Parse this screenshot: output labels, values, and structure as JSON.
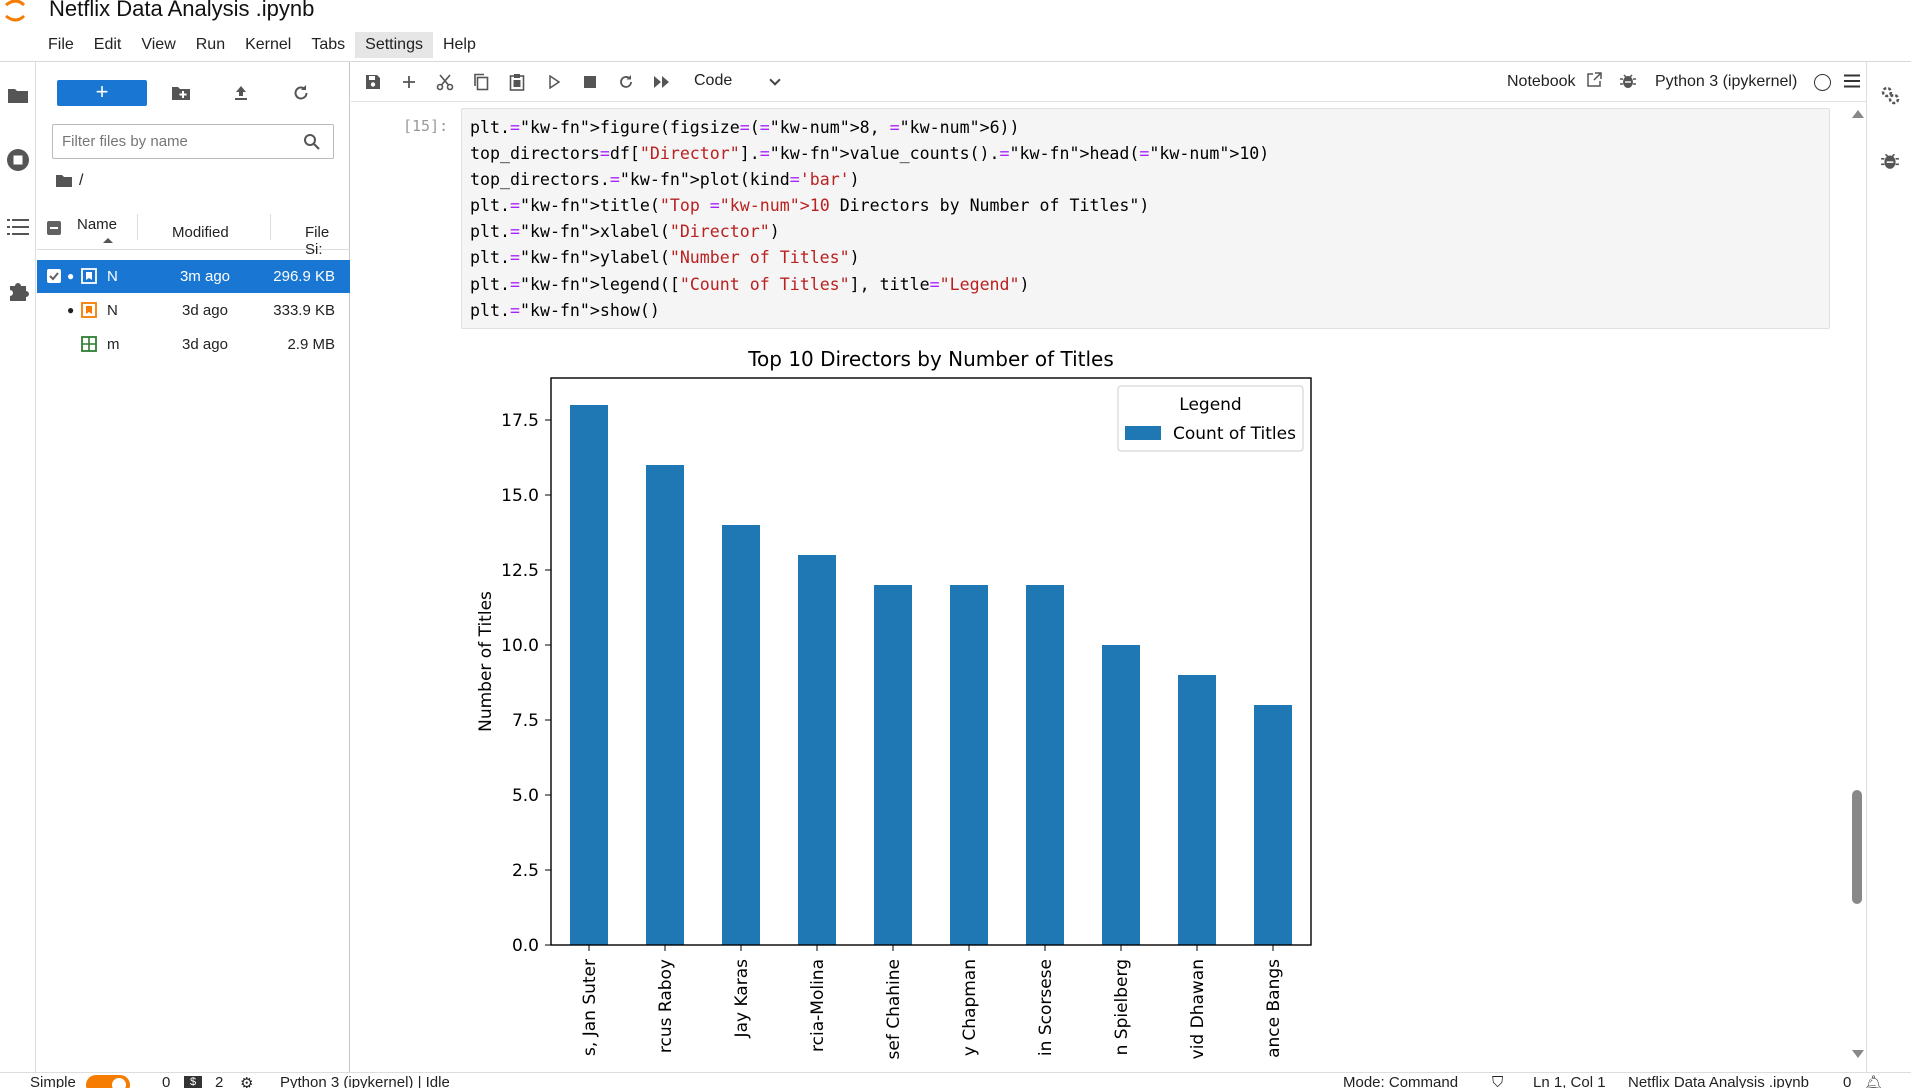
{
  "window": {
    "title": "Netflix Data Analysis .ipynb"
  },
  "menu": [
    "File",
    "Edit",
    "View",
    "Run",
    "Kernel",
    "Tabs",
    "Settings",
    "Help"
  ],
  "filebrowser": {
    "new_label": "+",
    "filter_placeholder": "Filter files by name",
    "breadcrumb": "/",
    "columns": {
      "name": "Name",
      "modified": "Modified",
      "size": "File Si:"
    },
    "files": [
      {
        "name": "N",
        "modified": "3m ago",
        "size": "296.9 KB",
        "icon": "notebook-icon",
        "selected": true,
        "running": true
      },
      {
        "name": "N",
        "modified": "3d ago",
        "size": "333.9 KB",
        "icon": "notebook-icon",
        "selected": false,
        "running": true
      },
      {
        "name": "m",
        "modified": "3d ago",
        "size": "2.9 MB",
        "icon": "spreadsheet-icon",
        "selected": false,
        "running": false
      }
    ]
  },
  "toolbar": {
    "cell_type": "Code",
    "notebook_link": "Notebook",
    "kernel_name": "Python 3 (ipykernel)"
  },
  "cell": {
    "prompt": "[15]:",
    "code": [
      "plt.figure(figsize=(8, 6))",
      "top_directors=df[\"Director\"].value_counts().head(10)",
      "top_directors.plot(kind='bar')",
      "plt.title(\"Top 10 Directors by Number of Titles\")",
      "plt.xlabel(\"Director\")",
      "plt.ylabel(\"Number of Titles\")",
      "plt.legend([\"Count of Titles\"], title=\"Legend\")",
      "plt.show()"
    ]
  },
  "chart_data": {
    "type": "bar",
    "title": "Top 10 Directors by Number of Titles",
    "xlabel": "",
    "ylabel": "Number of Titles",
    "categories": [
      "s, Jan Suter",
      "rcus Raboy",
      "Jay Karas",
      "rcia-Molina",
      "sef Chahine",
      "y Chapman",
      "in Scorsese",
      "n Spielberg",
      "vid Dhawan",
      "ance Bangs"
    ],
    "values": [
      18,
      16,
      14,
      13,
      12,
      12,
      12,
      10,
      9,
      8
    ],
    "series": [
      {
        "name": "Count of Titles",
        "values": [
          18,
          16,
          14,
          13,
          12,
          12,
          12,
          10,
          9,
          8
        ]
      }
    ],
    "ylim": [
      0,
      18.9
    ],
    "yticks": [
      "0.0",
      "2.5",
      "5.0",
      "7.5",
      "10.0",
      "12.5",
      "15.0",
      "17.5"
    ],
    "legend": {
      "title": "Legend",
      "placement": "top-right"
    },
    "bar_color": "#1f77b4"
  },
  "statusbar": {
    "mode_label": "Simple",
    "terminals": "0",
    "kernels": "2",
    "kernel_status": "Python 3 (ipykernel) | Idle",
    "mode": "Mode: Command",
    "cursor": "Ln 1, Col 1",
    "filename": "Netflix Data Analysis .ipynb",
    "notifications": "0"
  },
  "colors": {
    "accent": "#1976d2",
    "jupyter_orange": "#f57c00"
  }
}
